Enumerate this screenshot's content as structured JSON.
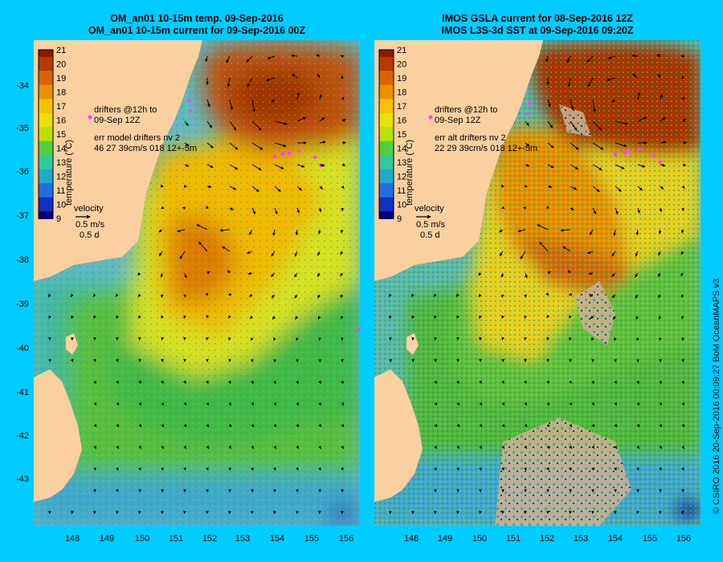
{
  "left_panel": {
    "title_line1": "OM_an01 10-15m temp. 09-Sep-2016",
    "title_line2": "OM_an01 10-15m current for 09-Sep-2016 00Z",
    "drifters_line1": "drifters @12h to",
    "drifters_line2": "09-Sep 12Z",
    "err_line1": "err model drifters nv 2",
    "err_line2": "46 27 39cm/s 018 12+-5m",
    "velocity_label": "velocity",
    "velocity_scale1": "0.5 m/s",
    "velocity_scale2": "0.5 d",
    "colorbar_label": "temperature (°C)"
  },
  "right_panel": {
    "title_line1": "IMOS GSLA current for 08-Sep-2016 12Z",
    "title_line2": "IMOS L3S-3d SST at 09-Sep-2016 09:20Z",
    "drifters_line1": "drifters @12h to",
    "drifters_line2": "09-Sep 12Z",
    "err_line1": "err alt drifters nv 2",
    "err_line2": "22 29 39cm/s 018 12+-5m",
    "velocity_label": "velocity",
    "velocity_scale1": "0.5 m/s",
    "velocity_scale2": "0.5 d",
    "colorbar_label": "temperature (°C)"
  },
  "colorbar": {
    "ticks": [
      "21",
      "20",
      "19",
      "18",
      "17",
      "16",
      "15",
      "14",
      "13",
      "12",
      "11",
      "10",
      "9"
    ],
    "colors": [
      "#8b1a00",
      "#b53a00",
      "#d86400",
      "#e89000",
      "#f5c000",
      "#e8e000",
      "#b8e000",
      "#50d040",
      "#30c8a0",
      "#20a8d0",
      "#2070e0",
      "#1030c0",
      "#000080"
    ]
  },
  "y_ticks": [
    "-34",
    "-35",
    "-36",
    "-37",
    "-38",
    "-39",
    "-40",
    "-41",
    "-42",
    "-43"
  ],
  "x_ticks": [
    "148",
    "149",
    "150",
    "151",
    "152",
    "153",
    "154",
    "155",
    "156"
  ],
  "credit": "© CSIRO 2016   20-Sep-2016 00:09:27 BoM OceanMAPS v3",
  "colors": {
    "background": "#00ccff",
    "land": "#fbd0a0"
  }
}
